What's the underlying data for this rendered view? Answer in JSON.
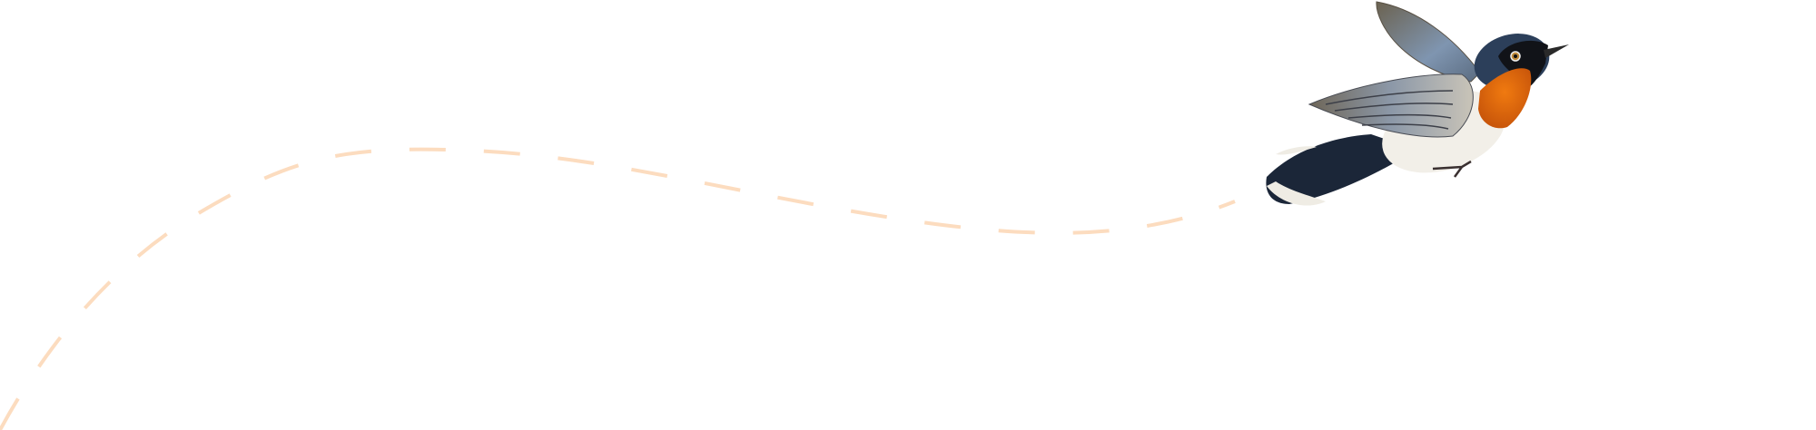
{
  "colors": {
    "background": "#ffffff",
    "flight_path": "#fcdcbf",
    "bird_throat": "#e8740f",
    "bird_head": "#2c3f5a",
    "bird_mask": "#111318",
    "bird_belly": "#f2efe8",
    "bird_wing": "#7f8590",
    "bird_tail": "#1b2638"
  },
  "icons": {
    "bird": "bird-illustration",
    "path": "dashed-flight-path"
  }
}
